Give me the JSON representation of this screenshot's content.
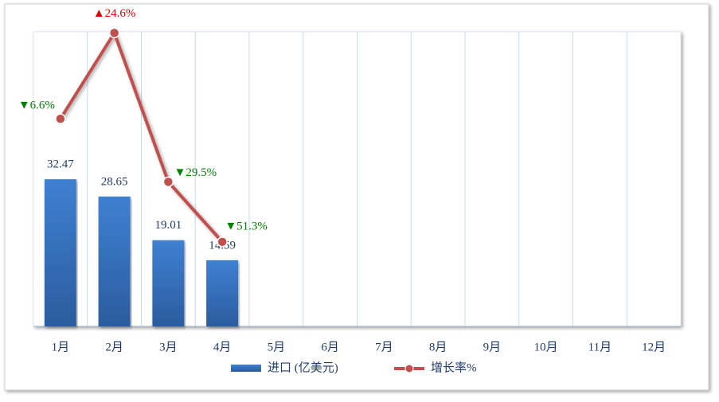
{
  "chart_data": {
    "type": "bar-line",
    "categories": [
      "1月",
      "2月",
      "3月",
      "4月",
      "5月",
      "6月",
      "7月",
      "8月",
      "9月",
      "10月",
      "11月",
      "12月"
    ],
    "series": [
      {
        "name": "进口 (亿美元)",
        "type": "bar",
        "color": "#3a77c6",
        "values": [
          32.47,
          28.65,
          19.01,
          14.59,
          null,
          null,
          null,
          null,
          null,
          null,
          null,
          null
        ]
      },
      {
        "name": "增长率%",
        "type": "line",
        "axis": "y2",
        "color": "#c0504d",
        "values": [
          -6.6,
          24.6,
          -29.5,
          -51.3,
          null,
          null,
          null,
          null,
          null,
          null,
          null,
          null
        ],
        "value_labels": [
          "▼6.6%",
          "▲24.6%",
          "▼29.5%",
          "▼51.3%",
          null,
          null,
          null,
          null,
          null,
          null,
          null,
          null
        ]
      }
    ],
    "ylim": [
      0,
      65
    ],
    "y2lim": [
      -82,
      25
    ],
    "up_color": "#e00000",
    "down_color": "#008000"
  }
}
